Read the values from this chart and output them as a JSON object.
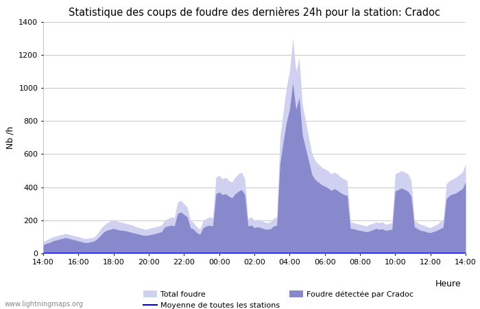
{
  "title": "Statistique des coups de foudre des dernières 24h pour la station: Cradoc",
  "xlabel": "Heure",
  "ylabel": "Nb /h",
  "ylim": [
    0,
    1400
  ],
  "yticks": [
    0,
    200,
    400,
    600,
    800,
    1000,
    1200,
    1400
  ],
  "xtick_labels": [
    "14:00",
    "16:00",
    "18:00",
    "20:00",
    "22:00",
    "00:00",
    "02:00",
    "04:00",
    "06:00",
    "08:00",
    "10:00",
    "12:00",
    "14:00"
  ],
  "bg_color": "#ffffff",
  "plot_bg_color": "#ffffff",
  "grid_color": "#cccccc",
  "total_foudre_color": "#d0d0f0",
  "foudre_cradoc_color": "#8888cc",
  "moyenne_color": "#0000dd",
  "watermark": "www.lightningmaps.org",
  "total_foudre": [
    70,
    80,
    90,
    100,
    105,
    110,
    115,
    120,
    115,
    110,
    105,
    100,
    95,
    90,
    90,
    95,
    100,
    120,
    150,
    170,
    185,
    195,
    200,
    195,
    190,
    185,
    180,
    175,
    170,
    160,
    155,
    150,
    145,
    150,
    155,
    160,
    165,
    170,
    200,
    210,
    220,
    215,
    310,
    320,
    300,
    280,
    200,
    185,
    160,
    145,
    200,
    210,
    220,
    215,
    460,
    470,
    450,
    460,
    440,
    430,
    460,
    480,
    490,
    450,
    210,
    220,
    200,
    205,
    200,
    190,
    185,
    190,
    210,
    220,
    700,
    850,
    1000,
    1100,
    1300,
    1100,
    1180,
    900,
    800,
    700,
    600,
    560,
    540,
    520,
    510,
    500,
    480,
    490,
    480,
    460,
    450,
    440,
    190,
    185,
    180,
    175,
    170,
    165,
    175,
    180,
    190,
    185,
    190,
    175,
    180,
    185,
    480,
    490,
    500,
    490,
    480,
    440,
    200,
    185,
    175,
    170,
    160,
    155,
    165,
    175,
    190,
    200,
    420,
    440,
    450,
    460,
    475,
    490,
    540
  ],
  "foudre_cradoc": [
    50,
    60,
    65,
    75,
    80,
    85,
    90,
    95,
    90,
    85,
    80,
    75,
    70,
    65,
    65,
    70,
    75,
    90,
    110,
    130,
    140,
    145,
    150,
    145,
    140,
    138,
    135,
    130,
    125,
    120,
    115,
    110,
    108,
    110,
    115,
    120,
    125,
    130,
    160,
    165,
    170,
    165,
    240,
    250,
    235,
    220,
    155,
    145,
    125,
    115,
    155,
    165,
    170,
    165,
    360,
    370,
    355,
    360,
    345,
    335,
    360,
    375,
    385,
    355,
    165,
    170,
    155,
    160,
    155,
    148,
    145,
    148,
    165,
    170,
    540,
    670,
    790,
    870,
    1030,
    870,
    940,
    715,
    635,
    555,
    475,
    445,
    430,
    415,
    405,
    395,
    380,
    390,
    380,
    365,
    355,
    350,
    150,
    148,
    142,
    138,
    135,
    130,
    135,
    142,
    150,
    145,
    148,
    138,
    142,
    145,
    375,
    385,
    395,
    385,
    375,
    345,
    160,
    148,
    138,
    135,
    128,
    125,
    132,
    138,
    148,
    158,
    330,
    350,
    358,
    365,
    378,
    390,
    430
  ],
  "moyenne": [
    0,
    0,
    0,
    0,
    0,
    0,
    0,
    0,
    0,
    0,
    0,
    0,
    0,
    0,
    0,
    0,
    0,
    0,
    0,
    0,
    0,
    0,
    0,
    0,
    0,
    0,
    0,
    0,
    0,
    0,
    0,
    0,
    0,
    0,
    0,
    0,
    0,
    0,
    0,
    0,
    0,
    0,
    0,
    0,
    0,
    0,
    0,
    0,
    0,
    0,
    0,
    0,
    0,
    0,
    0,
    0,
    0,
    0,
    0,
    0,
    0,
    0,
    0,
    0,
    0,
    0,
    0,
    0,
    0,
    0,
    0,
    0,
    0,
    0,
    0,
    0,
    0,
    0,
    0,
    0,
    0,
    0,
    0,
    0,
    0,
    0,
    0,
    0,
    0,
    0,
    0,
    0,
    0,
    0,
    0,
    0,
    0,
    0,
    0,
    0,
    0,
    0,
    0,
    0,
    0,
    0,
    0,
    0,
    0,
    0,
    0,
    0,
    0,
    0,
    0,
    0,
    0,
    0,
    0,
    0,
    0,
    0,
    0,
    0,
    0,
    0,
    0,
    0,
    0,
    0,
    0,
    0,
    0
  ]
}
